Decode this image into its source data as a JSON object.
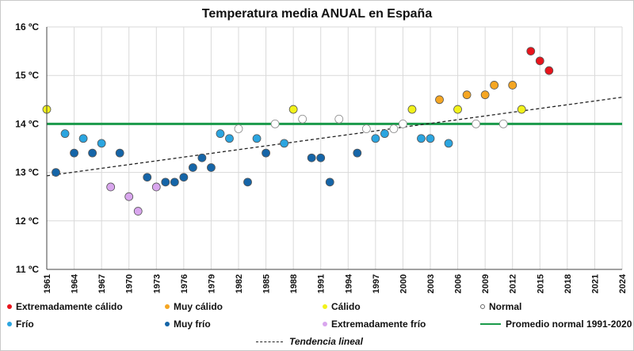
{
  "chart_data": {
    "type": "scatter",
    "title": "Temperatura media ANUAL en España",
    "xlabel": "",
    "ylabel": "",
    "xlim": [
      1961,
      2024
    ],
    "ylim": [
      11,
      16
    ],
    "x_ticks": [
      1961,
      1964,
      1967,
      1970,
      1973,
      1976,
      1979,
      1982,
      1985,
      1988,
      1991,
      1994,
      1997,
      2000,
      2003,
      2006,
      2009,
      2012,
      2015,
      2018,
      2021,
      2024
    ],
    "y_ticks": [
      {
        "value": 11,
        "label": "11 ºC"
      },
      {
        "value": 12,
        "label": "12 ºC"
      },
      {
        "value": 13,
        "label": "13 ºC"
      },
      {
        "value": 14,
        "label": "14 ºC"
      },
      {
        "value": 15,
        "label": "15 ºC"
      },
      {
        "value": 16,
        "label": "16 ºC"
      }
    ],
    "grid": true,
    "categories": [
      {
        "key": "ext_calido",
        "name": "Extremadamente cálido",
        "color": "#e8141c"
      },
      {
        "key": "muy_calido",
        "name": "Muy cálido",
        "color": "#f5a623"
      },
      {
        "key": "calido",
        "name": "Cálido",
        "color": "#f2f21a"
      },
      {
        "key": "normal",
        "name": "Normal",
        "color": "#ffffff"
      },
      {
        "key": "frio",
        "name": "Frío",
        "color": "#2ba5e0"
      },
      {
        "key": "muy_frio",
        "name": "Muy frío",
        "color": "#1565a8"
      },
      {
        "key": "ext_frio",
        "name": "Extremadamente frío",
        "color": "#d9a6ee"
      }
    ],
    "points": [
      {
        "x": 1961,
        "y": 14.3,
        "cat": "calido"
      },
      {
        "x": 1962,
        "y": 13.0,
        "cat": "muy_frio"
      },
      {
        "x": 1963,
        "y": 13.8,
        "cat": "frio"
      },
      {
        "x": 1964,
        "y": 13.4,
        "cat": "muy_frio"
      },
      {
        "x": 1965,
        "y": 13.7,
        "cat": "frio"
      },
      {
        "x": 1966,
        "y": 13.4,
        "cat": "muy_frio"
      },
      {
        "x": 1967,
        "y": 13.6,
        "cat": "frio"
      },
      {
        "x": 1968,
        "y": 12.7,
        "cat": "ext_frio"
      },
      {
        "x": 1969,
        "y": 13.4,
        "cat": "muy_frio"
      },
      {
        "x": 1970,
        "y": 12.5,
        "cat": "ext_frio"
      },
      {
        "x": 1971,
        "y": 12.2,
        "cat": "ext_frio"
      },
      {
        "x": 1972,
        "y": 12.9,
        "cat": "muy_frio"
      },
      {
        "x": 1973,
        "y": 12.7,
        "cat": "ext_frio"
      },
      {
        "x": 1974,
        "y": 12.8,
        "cat": "muy_frio"
      },
      {
        "x": 1975,
        "y": 12.8,
        "cat": "muy_frio"
      },
      {
        "x": 1976,
        "y": 12.9,
        "cat": "muy_frio"
      },
      {
        "x": 1977,
        "y": 13.1,
        "cat": "muy_frio"
      },
      {
        "x": 1978,
        "y": 13.3,
        "cat": "muy_frio"
      },
      {
        "x": 1979,
        "y": 13.1,
        "cat": "muy_frio"
      },
      {
        "x": 1980,
        "y": 13.8,
        "cat": "frio"
      },
      {
        "x": 1981,
        "y": 13.7,
        "cat": "frio"
      },
      {
        "x": 1982,
        "y": 13.9,
        "cat": "normal"
      },
      {
        "x": 1983,
        "y": 12.8,
        "cat": "muy_frio"
      },
      {
        "x": 1984,
        "y": 13.7,
        "cat": "frio"
      },
      {
        "x": 1985,
        "y": 13.4,
        "cat": "muy_frio"
      },
      {
        "x": 1986,
        "y": 14.0,
        "cat": "normal"
      },
      {
        "x": 1987,
        "y": 13.6,
        "cat": "frio"
      },
      {
        "x": 1988,
        "y": 14.3,
        "cat": "calido"
      },
      {
        "x": 1989,
        "y": 14.1,
        "cat": "normal"
      },
      {
        "x": 1990,
        "y": 13.3,
        "cat": "muy_frio"
      },
      {
        "x": 1991,
        "y": 13.3,
        "cat": "muy_frio"
      },
      {
        "x": 1992,
        "y": 12.8,
        "cat": "muy_frio"
      },
      {
        "x": 1993,
        "y": 14.1,
        "cat": "normal"
      },
      {
        "x": 1995,
        "y": 13.4,
        "cat": "muy_frio"
      },
      {
        "x": 1996,
        "y": 13.9,
        "cat": "normal"
      },
      {
        "x": 1997,
        "y": 13.7,
        "cat": "frio"
      },
      {
        "x": 1998,
        "y": 13.8,
        "cat": "frio"
      },
      {
        "x": 1999,
        "y": 13.9,
        "cat": "normal"
      },
      {
        "x": 2000,
        "y": 14.0,
        "cat": "normal"
      },
      {
        "x": 2001,
        "y": 14.3,
        "cat": "calido"
      },
      {
        "x": 2002,
        "y": 13.7,
        "cat": "frio"
      },
      {
        "x": 2003,
        "y": 13.7,
        "cat": "frio"
      },
      {
        "x": 2004,
        "y": 14.5,
        "cat": "muy_calido"
      },
      {
        "x": 2005,
        "y": 13.6,
        "cat": "frio"
      },
      {
        "x": 2006,
        "y": 14.3,
        "cat": "calido"
      },
      {
        "x": 2007,
        "y": 14.6,
        "cat": "muy_calido"
      },
      {
        "x": 2008,
        "y": 14.0,
        "cat": "normal"
      },
      {
        "x": 2009,
        "y": 14.6,
        "cat": "muy_calido"
      },
      {
        "x": 2010,
        "y": 14.8,
        "cat": "muy_calido"
      },
      {
        "x": 2011,
        "y": 14.0,
        "cat": "normal"
      },
      {
        "x": 2012,
        "y": 14.8,
        "cat": "muy_calido"
      },
      {
        "x": 2013,
        "y": 14.3,
        "cat": "calido"
      },
      {
        "x": 2014,
        "y": 15.5,
        "cat": "ext_calido"
      },
      {
        "x": 2015,
        "y": 15.3,
        "cat": "ext_calido"
      },
      {
        "x": 2016,
        "y": 15.1,
        "cat": "ext_calido"
      }
    ],
    "normal_line": {
      "name": "Promedio normal 1991-2020",
      "y": 14.0,
      "color": "#1a9a4a"
    },
    "trend": {
      "name": "Tendencia lineal",
      "x": [
        1961,
        2024
      ],
      "y": [
        12.93,
        14.55
      ]
    },
    "legend_position": "bottom"
  }
}
